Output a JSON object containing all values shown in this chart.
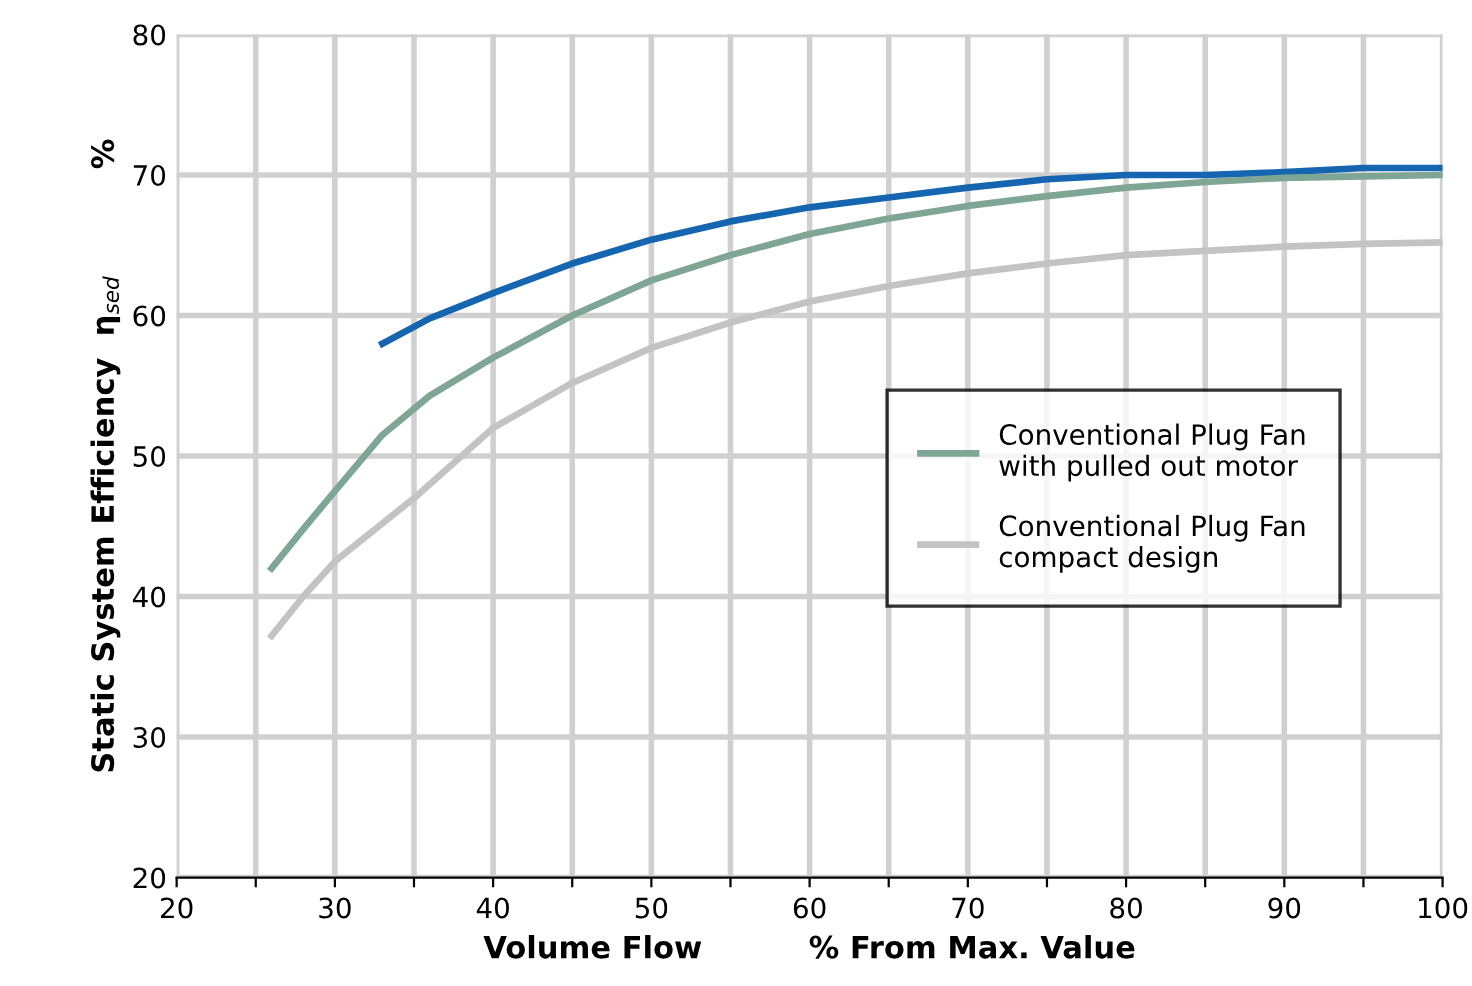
{
  "chart_data": {
    "type": "line",
    "xlabel": "Volume Flow          % From Max. Value",
    "ylabel": "Static System Efficiency  η$_{sed}$          %",
    "xlim": [
      20,
      100
    ],
    "ylim": [
      20,
      80
    ],
    "xticks": [
      20,
      {
        "value": 25,
        "label": null
      },
      30,
      {
        "value": 35,
        "label": null
      },
      40,
      {
        "value": 45,
        "label": null
      },
      50,
      {
        "value": 55,
        "label": null
      },
      60,
      {
        "value": 65,
        "label": null
      },
      70,
      {
        "value": 75,
        "label": null
      },
      80,
      {
        "value": 85,
        "label": null
      },
      90,
      {
        "value": 95,
        "label": null
      },
      100
    ],
    "yticks": [
      20,
      30,
      40,
      50,
      60,
      70,
      80
    ],
    "grid": true,
    "legend": "right",
    "line_style": "solid",
    "marker": "none",
    "series": [
      {
        "color": "#1565b0",
        "x": [
          33,
          36,
          40,
          45,
          50,
          55,
          60,
          65,
          70,
          75,
          80,
          85,
          90,
          95,
          100
        ],
        "values": [
          58,
          59.8,
          61.6,
          63.7,
          65.4,
          66.7,
          67.7,
          68.4,
          69.1,
          69.7,
          70,
          70,
          70.2,
          70.5,
          70.5
        ]
      },
      {
        "name": "Conventional Plug Fan\nwith pulled out motor",
        "color": "#7fa595",
        "x": [
          26,
          28,
          30,
          33,
          36,
          40,
          45,
          50,
          55,
          60,
          65,
          70,
          75,
          80,
          85,
          90,
          95,
          100
        ],
        "values": [
          42,
          44.8,
          47.5,
          51.5,
          54.3,
          57,
          60,
          62.5,
          64.3,
          65.8,
          66.9,
          67.8,
          68.5,
          69.1,
          69.5,
          69.8,
          69.9,
          70
        ]
      },
      {
        "name": "Conventional Plug Fan\ncompact design",
        "color": "#c3c3c3",
        "x": [
          26,
          28,
          30,
          35,
          40,
          45,
          50,
          55,
          60,
          65,
          70,
          75,
          80,
          85,
          90,
          95,
          100
        ],
        "values": [
          37.2,
          40,
          42.5,
          47,
          52,
          55.2,
          57.7,
          59.5,
          61,
          62.1,
          63,
          63.7,
          64.3,
          64.6,
          64.9,
          65.1,
          65.2
        ]
      }
    ]
  }
}
